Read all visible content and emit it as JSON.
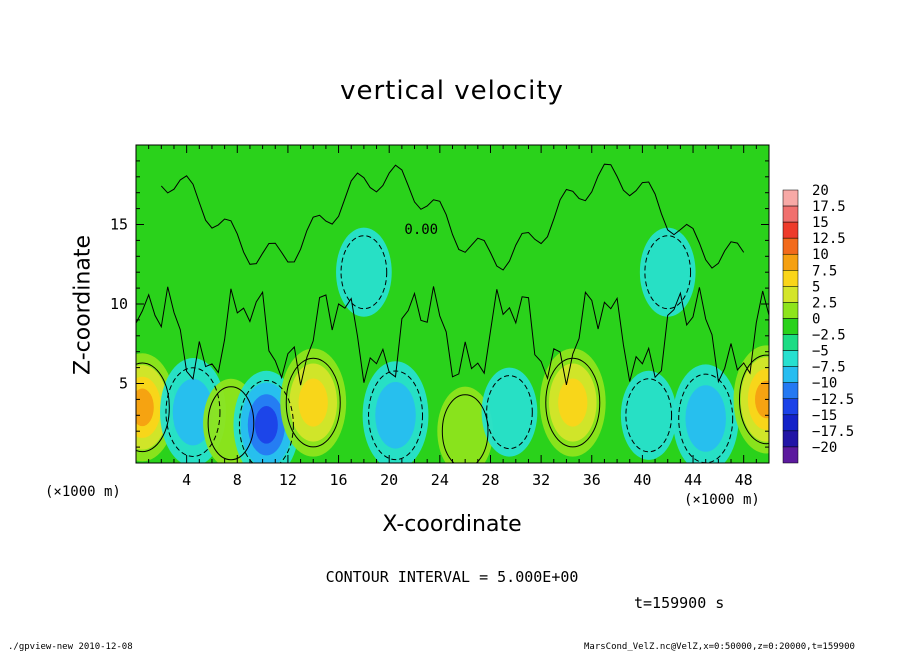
{
  "footer": {
    "left": "./gpview-new  2010-12-08",
    "right": "MarsCond_VelZ.nc@VelZ,x=0:50000,z=0:20000,t=159900"
  },
  "chart_data": {
    "type": "heatmap",
    "title": "vertical velocity",
    "xlabel": "X-coordinate",
    "ylabel": "Z-coordinate",
    "x_unit": "(×1000 m)",
    "y_unit": "(×1000 m)",
    "xlim": [
      0,
      50
    ],
    "ylim": [
      0,
      20
    ],
    "x_ticks": [
      4,
      8,
      12,
      16,
      20,
      24,
      28,
      32,
      36,
      40,
      44,
      48
    ],
    "y_ticks": [
      5,
      10,
      15
    ],
    "contour_interval_text": "CONTOUR INTERVAL = 5.000E+00",
    "contour_label": "0.00",
    "time_text": "t=159900 s",
    "colorbar": {
      "labels": [
        "20",
        "17.5",
        "15",
        "12.5",
        "10",
        "7.5",
        "5",
        "2.5",
        "0",
        "−2.5",
        "−5",
        "−7.5",
        "−10",
        "−12.5",
        "−15",
        "−17.5",
        "−20"
      ],
      "colors": [
        "#f7a9a6",
        "#f0706e",
        "#ee3b2a",
        "#f26a1b",
        "#f5a011",
        "#fad519",
        "#d4e52a",
        "#8ee41c",
        "#2ad21b",
        "#1cdc84",
        "#27e0cf",
        "#27bdf0",
        "#2579f2",
        "#1b42e8",
        "#1322c8",
        "#2215a6",
        "#5c1a9e"
      ]
    },
    "features": [
      {
        "type": "updraft",
        "x": 0.5,
        "z": 3.5,
        "peak": 10
      },
      {
        "type": "downdraft",
        "x": 4.5,
        "z": 3.2,
        "peak": -5
      },
      {
        "type": "updraft",
        "x": 7.5,
        "z": 2.5,
        "peak": 3
      },
      {
        "type": "downdraft",
        "x": 10.3,
        "z": 2.4,
        "peak": -10
      },
      {
        "type": "updraft",
        "x": 14.0,
        "z": 3.8,
        "peak": 8.5
      },
      {
        "type": "downdraft",
        "x": 20.5,
        "z": 3.0,
        "peak": -6
      },
      {
        "type": "updraft",
        "x": 26.0,
        "z": 2.0,
        "peak": 2
      },
      {
        "type": "downdraft",
        "x": 29.5,
        "z": 3.2,
        "peak": -4
      },
      {
        "type": "updraft",
        "x": 34.5,
        "z": 3.8,
        "peak": 8
      },
      {
        "type": "downdraft",
        "x": 40.5,
        "z": 3.0,
        "peak": -3
      },
      {
        "type": "downdraft",
        "x": 45.0,
        "z": 2.8,
        "peak": -6
      },
      {
        "type": "updraft",
        "x": 49.8,
        "z": 4.0,
        "peak": 10
      },
      {
        "type": "downdraft",
        "x": 18.0,
        "z": 12.0,
        "peak": -2
      },
      {
        "type": "downdraft",
        "x": 42.0,
        "z": 12.0,
        "peak": -1.5
      }
    ]
  }
}
